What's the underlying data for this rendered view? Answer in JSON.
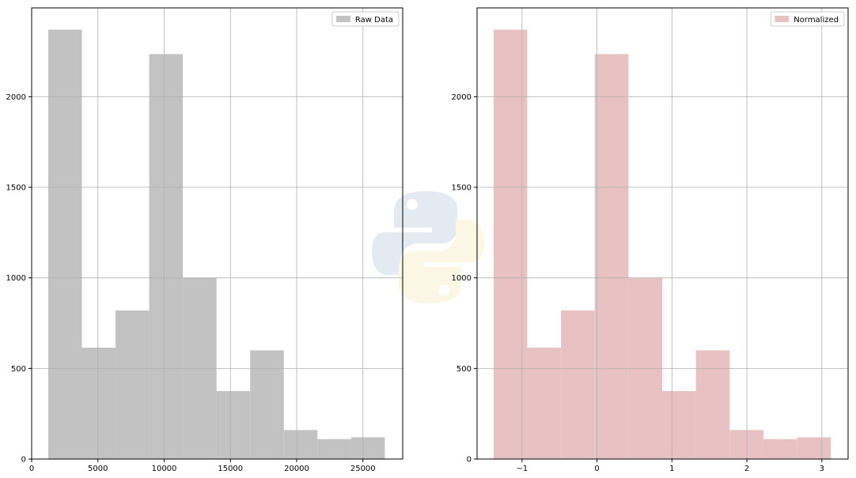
{
  "chart_data": [
    {
      "type": "bar",
      "subtype": "histogram",
      "legend": "Raw Data",
      "legend_position": "upper-right",
      "color": "#c2c2c2",
      "grid": true,
      "xlim": [
        0,
        28000
      ],
      "ylim": [
        0,
        2490
      ],
      "x_ticks": [
        0,
        5000,
        10000,
        15000,
        20000,
        25000
      ],
      "x_tick_labels": [
        "0",
        "5000",
        "10000",
        "15000",
        "20000",
        "25000"
      ],
      "y_ticks": [
        0,
        500,
        1000,
        1500,
        2000
      ],
      "y_tick_labels": [
        "0",
        "500",
        "1000",
        "1500",
        "2000"
      ],
      "bin_edges": [
        1250,
        3790,
        6330,
        8870,
        11410,
        13950,
        16490,
        19030,
        21570,
        24110,
        26650
      ],
      "values": [
        2370,
        615,
        820,
        2235,
        1000,
        375,
        600,
        160,
        110,
        120
      ]
    },
    {
      "type": "bar",
      "subtype": "histogram",
      "legend": "Normalized",
      "legend_position": "upper-right",
      "color": "#e8c2c2",
      "grid": true,
      "xlim": [
        -1.6,
        3.35
      ],
      "ylim": [
        0,
        2490
      ],
      "x_ticks": [
        -1,
        0,
        1,
        2,
        3
      ],
      "x_tick_labels": [
        "−1",
        "0",
        "1",
        "2",
        "3"
      ],
      "y_ticks": [
        0,
        500,
        1000,
        1500,
        2000
      ],
      "y_tick_labels": [
        "0",
        "500",
        "1000",
        "1500",
        "2000"
      ],
      "bin_edges": [
        -1.38,
        -0.93,
        -0.48,
        -0.03,
        0.42,
        0.87,
        1.32,
        1.77,
        2.22,
        2.67,
        3.12
      ],
      "values": [
        2370,
        615,
        820,
        2235,
        1000,
        375,
        600,
        160,
        110,
        120
      ]
    }
  ]
}
